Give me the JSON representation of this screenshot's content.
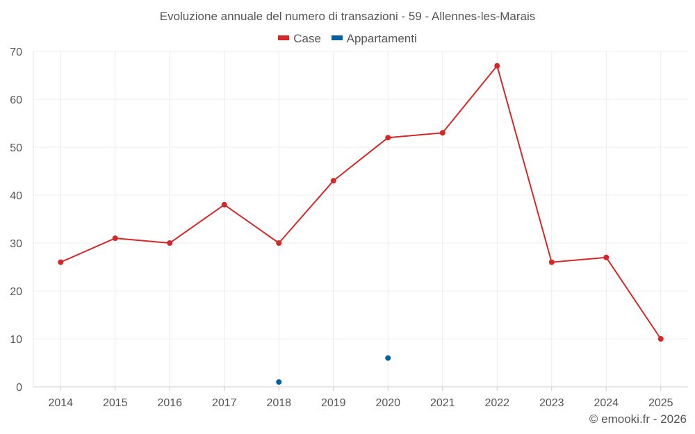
{
  "chart_data": {
    "type": "line",
    "title": "Evoluzione annuale del numero di transazioni - 59 - Allennes-les-Marais",
    "categories": [
      "2014",
      "2015",
      "2016",
      "2017",
      "2018",
      "2019",
      "2020",
      "2021",
      "2022",
      "2023",
      "2024",
      "2025"
    ],
    "ylim": [
      0,
      70
    ],
    "yticks": [
      0,
      10,
      20,
      30,
      40,
      50,
      60,
      70
    ],
    "grid": true,
    "legend_position": "top-center",
    "series": [
      {
        "name": "Case",
        "color": "#d62728",
        "values": [
          26,
          31,
          30,
          38,
          30,
          43,
          52,
          53,
          67,
          26,
          27,
          10
        ]
      },
      {
        "name": "Appartamenti",
        "color": "#0060a0",
        "values": [
          null,
          null,
          null,
          null,
          1,
          null,
          6,
          null,
          null,
          null,
          null,
          null
        ]
      }
    ]
  },
  "credit": "© emooki.fr - 2026"
}
